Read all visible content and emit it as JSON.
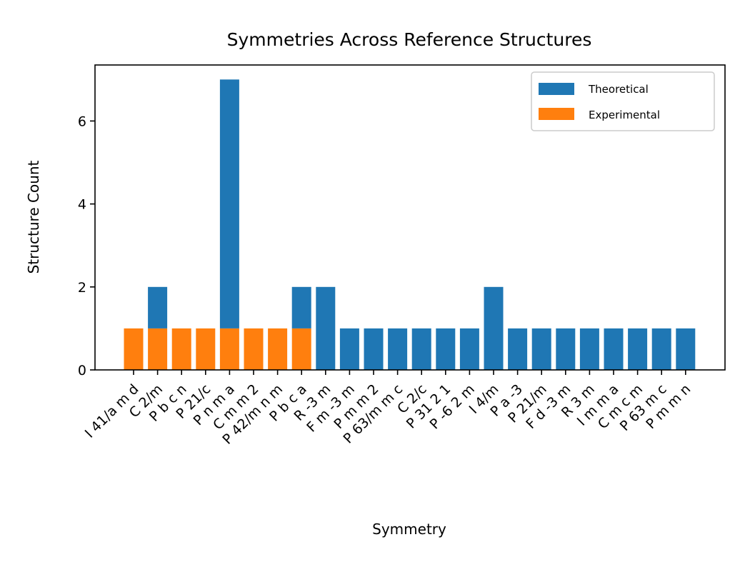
{
  "chart_data": {
    "type": "bar",
    "stacked": true,
    "title": "Symmetries Across Reference Structures",
    "xlabel": "Symmetry",
    "ylabel": "Structure Count",
    "ylim": [
      0,
      7.35
    ],
    "yticks": [
      0,
      2,
      4,
      6
    ],
    "grid": false,
    "legend_position": "top-right",
    "categories": [
      "I 41/a m d",
      "C 2/m",
      "P b c n",
      "P 21/c",
      "P n m a",
      "C m m 2",
      "P 42/m n m",
      "P b c a",
      "R -3 m",
      "F m -3 m",
      "P m m 2",
      "P 63/m m c",
      "C 2/c",
      "P 31 2 1",
      "P -6 2 m",
      "I 4/m",
      "P a -3",
      "P 21/m",
      "F d -3 m",
      "R 3 m",
      "I m m a",
      "C m c m",
      "P 63 m c",
      "P m m n"
    ],
    "series": [
      {
        "name": "Experimental",
        "color": "#ff7f0e",
        "values": [
          1,
          1,
          1,
          1,
          1,
          1,
          1,
          1,
          0,
          0,
          0,
          0,
          0,
          0,
          0,
          0,
          0,
          0,
          0,
          0,
          0,
          0,
          0,
          0
        ]
      },
      {
        "name": "Theoretical",
        "color": "#1f77b4",
        "values": [
          0,
          1,
          0,
          0,
          6,
          0,
          0,
          1,
          2,
          1,
          1,
          1,
          1,
          1,
          1,
          2,
          1,
          1,
          1,
          1,
          1,
          1,
          1,
          1
        ]
      }
    ],
    "legend": [
      "Theoretical",
      "Experimental"
    ]
  }
}
